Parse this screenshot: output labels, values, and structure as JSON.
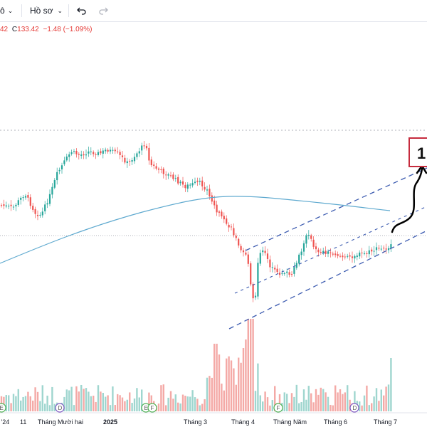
{
  "toolbar": {
    "symbol_fragment": "ô",
    "profile_label": "Hồ sơ",
    "undo_icon": "undo-icon",
    "redo_icon": "redo-icon"
  },
  "ohlc": {
    "prev_fragment": "42",
    "close_prefix": "C",
    "close_value": "133.42",
    "change": "−1.48 (−1.09%)"
  },
  "colors": {
    "up": "#26a69a",
    "down": "#ef5350",
    "vol_up": "#9fd6cf",
    "vol_down": "#f4a9a6",
    "ma": "#5ea9cf",
    "channel": "#3c5bb0",
    "annotation": "#000000",
    "target_border": "#c62b3d"
  },
  "time_axis": {
    "labels": [
      "11",
      "Tháng Mười hai",
      "2025",
      "Tháng 3",
      "Tháng 4",
      "Tháng Năm",
      "Tháng 6",
      "Tháng 7"
    ],
    "first_label_fragment": "O '24"
  },
  "event_markers": [
    "E",
    "D",
    "E",
    "F",
    "F",
    "D"
  ],
  "target_fragment": "1",
  "chart_data": {
    "type": "candlestick",
    "title": "",
    "legend_values": {
      "close": 133.42,
      "change": -1.48,
      "change_pct": -1.09
    },
    "overlays": [
      "moving-average",
      "ascending-channel",
      "hand-drawn-projection-arrow"
    ],
    "volume": true,
    "grid": false
  }
}
